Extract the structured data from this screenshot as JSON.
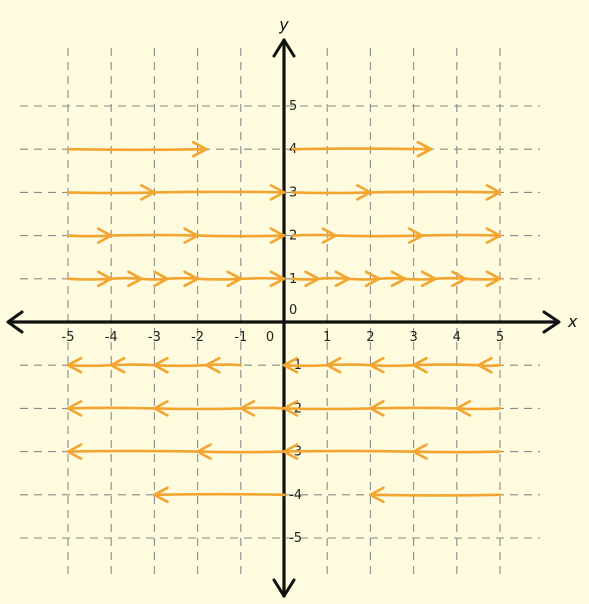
{
  "colors": {
    "background": "#FFFBDE",
    "grid": "#8a8a8a",
    "axis": "#111111",
    "arrow": "#F2A531"
  },
  "axes": {
    "x_label": "x",
    "y_label": "y",
    "x_ticks": [
      "-5",
      "-4",
      "-3",
      "-2",
      "-1",
      "0",
      "1",
      "2",
      "3",
      "4",
      "5"
    ],
    "y_ticks": [
      "5",
      "4",
      "3",
      "2",
      "1",
      "0",
      "-1",
      "-2",
      "-3",
      "-4",
      "-5"
    ]
  },
  "chart_data": {
    "type": "other",
    "description_kind": "horizontal vector arrows on a grid",
    "xlim": [
      -5,
      5
    ],
    "ylim": [
      -5,
      5
    ],
    "grid": true,
    "rows": [
      {
        "y": 4,
        "segments": [
          [
            -5,
            -1.8
          ],
          [
            0.2,
            3.4
          ]
        ]
      },
      {
        "y": 3,
        "segments": [
          [
            -5,
            -3
          ],
          [
            -3,
            0
          ],
          [
            0.2,
            2
          ],
          [
            2,
            5
          ]
        ]
      },
      {
        "y": 2,
        "segments": [
          [
            -5,
            -4
          ],
          [
            -4,
            -2
          ],
          [
            -2,
            0
          ],
          [
            0.2,
            1.2
          ],
          [
            1.2,
            3.2
          ],
          [
            3.2,
            5
          ]
        ]
      },
      {
        "y": 1,
        "segments": [
          [
            -5,
            -4
          ],
          [
            -4,
            -3.3
          ],
          [
            -3.3,
            -2.7
          ],
          [
            -2.7,
            -2
          ],
          [
            -2,
            -1
          ],
          [
            -1,
            0
          ],
          [
            0.2,
            0.8
          ],
          [
            0.8,
            1.5
          ],
          [
            1.5,
            2.2
          ],
          [
            2.2,
            2.8
          ],
          [
            2.8,
            3.5
          ],
          [
            3.5,
            4.2
          ],
          [
            4.2,
            5
          ]
        ]
      },
      {
        "y": -1,
        "segments": [
          [
            5,
            4.5
          ],
          [
            4.5,
            3
          ],
          [
            3,
            2
          ],
          [
            2,
            1
          ],
          [
            1,
            0
          ],
          [
            -1,
            -1.8
          ],
          [
            -1.8,
            -3
          ],
          [
            -3,
            -4
          ],
          [
            -4,
            -5
          ]
        ]
      },
      {
        "y": -2,
        "segments": [
          [
            5,
            4
          ],
          [
            4,
            2
          ],
          [
            2,
            0
          ],
          [
            0,
            -1
          ],
          [
            -1,
            -3
          ],
          [
            -3,
            -5
          ]
        ]
      },
      {
        "y": -3,
        "segments": [
          [
            5,
            3
          ],
          [
            3,
            0
          ],
          [
            0,
            -2
          ],
          [
            -2,
            -5
          ]
        ]
      },
      {
        "y": -4,
        "segments": [
          [
            5,
            2
          ],
          [
            0,
            -3
          ]
        ]
      }
    ]
  }
}
